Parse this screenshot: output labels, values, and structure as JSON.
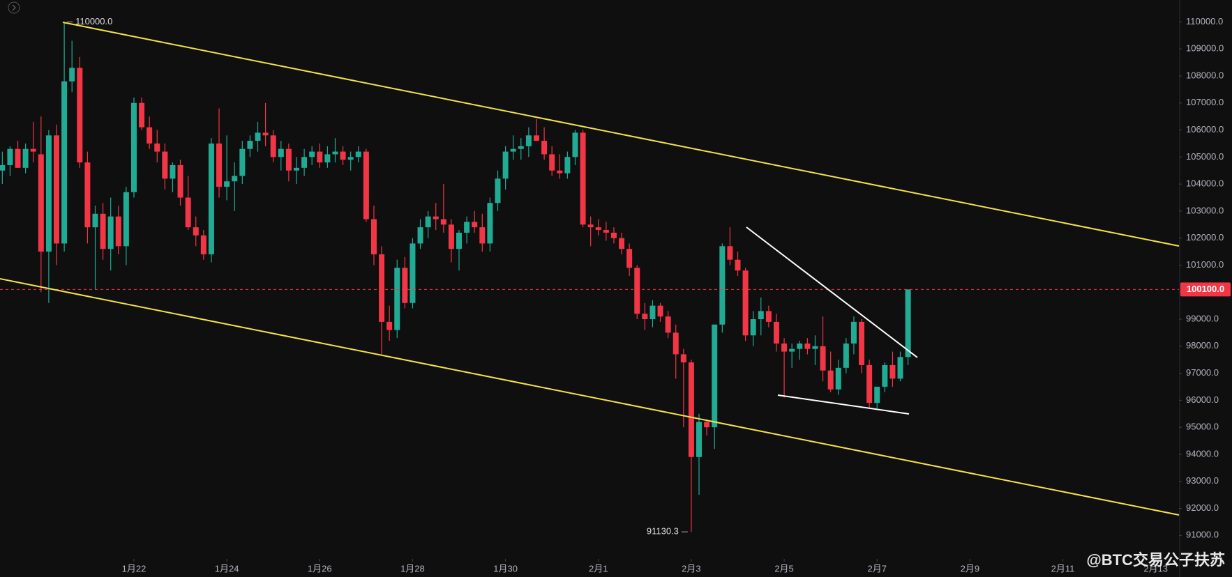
{
  "chart_data": {
    "type": "candlestick",
    "up_color": "#22ab94",
    "down_color": "#f23645",
    "grid": false,
    "xlim": [
      -0.3,
      152
    ],
    "ylim": [
      90130,
      110810
    ],
    "xticks": [
      {
        "value": 17,
        "label": "1月22"
      },
      {
        "value": 29,
        "label": "1月24"
      },
      {
        "value": 41,
        "label": "1月26"
      },
      {
        "value": 53,
        "label": "1月28"
      },
      {
        "value": 65,
        "label": "1月30"
      },
      {
        "value": 77,
        "label": "2月1"
      },
      {
        "value": 89,
        "label": "2月3"
      },
      {
        "value": 101,
        "label": "2月5"
      },
      {
        "value": 113,
        "label": "2月7"
      },
      {
        "value": 125,
        "label": "2月9"
      },
      {
        "value": 137,
        "label": "2月11"
      },
      {
        "value": 149,
        "label": "2月13"
      }
    ],
    "yticks": [
      {
        "value": 91000,
        "label": "91000.0"
      },
      {
        "value": 92000,
        "label": "92000.0"
      },
      {
        "value": 93000,
        "label": "93000.0"
      },
      {
        "value": 94000,
        "label": "94000.0"
      },
      {
        "value": 95000,
        "label": "95000.0"
      },
      {
        "value": 96000,
        "label": "96000.0"
      },
      {
        "value": 97000,
        "label": "97000.0"
      },
      {
        "value": 98000,
        "label": "98000.0"
      },
      {
        "value": 99000,
        "label": "99000.0"
      },
      {
        "value": 100000,
        "label": "100000.0"
      },
      {
        "value": 101000,
        "label": "101000.0"
      },
      {
        "value": 102000,
        "label": "102000.0"
      },
      {
        "value": 103000,
        "label": "103000.0"
      },
      {
        "value": 104000,
        "label": "104000.0"
      },
      {
        "value": 105000,
        "label": "105000.0"
      },
      {
        "value": 106000,
        "label": "106000.0"
      },
      {
        "value": 107000,
        "label": "107000.0"
      },
      {
        "value": 108000,
        "label": "108000.0"
      },
      {
        "value": 109000,
        "label": "109000.0"
      },
      {
        "value": 110000,
        "label": "110000.0"
      }
    ],
    "high_label": {
      "value": 110000,
      "label": "110000.0"
    },
    "low_label": {
      "value": 91130.3,
      "label": "91130.3"
    },
    "last_price": {
      "value": 100100,
      "label": "100100.0"
    },
    "watermark": "@BTC交易公子扶苏",
    "candles": [
      [
        104500,
        105200,
        104000,
        104700
      ],
      [
        104700,
        105400,
        104300,
        105300
      ],
      [
        105300,
        105600,
        104600,
        104600
      ],
      [
        104600,
        105500,
        104400,
        105300
      ],
      [
        105300,
        106300,
        104800,
        105200
      ],
      [
        105100,
        106500,
        100000,
        101500
      ],
      [
        101500,
        106000,
        99600,
        105800
      ],
      [
        105800,
        106200,
        101000,
        101800
      ],
      [
        101800,
        110000,
        101500,
        107800
      ],
      [
        107800,
        109300,
        107400,
        108300
      ],
      [
        108300,
        108700,
        104600,
        104800
      ],
      [
        104800,
        105200,
        101800,
        102400
      ],
      [
        102400,
        103200,
        100100,
        102900
      ],
      [
        102900,
        103300,
        101200,
        101600
      ],
      [
        101600,
        103500,
        100800,
        102800
      ],
      [
        102800,
        103200,
        101400,
        101700
      ],
      [
        101700,
        103900,
        101000,
        103700
      ],
      [
        103700,
        107200,
        103500,
        107000
      ],
      [
        107000,
        107200,
        106000,
        106100
      ],
      [
        106100,
        106500,
        105300,
        105500
      ],
      [
        105500,
        106000,
        104800,
        105200
      ],
      [
        105200,
        105500,
        103800,
        104200
      ],
      [
        104200,
        104800,
        103700,
        104700
      ],
      [
        104700,
        104900,
        103200,
        103500
      ],
      [
        103500,
        104300,
        102300,
        102400
      ],
      [
        102400,
        102800,
        101700,
        102100
      ],
      [
        102100,
        102300,
        101200,
        101400
      ],
      [
        101400,
        105700,
        101100,
        105500
      ],
      [
        105500,
        106800,
        103500,
        103900
      ],
      [
        103900,
        105800,
        103400,
        104100
      ],
      [
        104100,
        104800,
        103000,
        104300
      ],
      [
        104300,
        105600,
        104000,
        105300
      ],
      [
        105300,
        105800,
        105000,
        105600
      ],
      [
        105600,
        106300,
        105200,
        105900
      ],
      [
        105900,
        107000,
        105400,
        105800
      ],
      [
        105800,
        106000,
        104800,
        105000
      ],
      [
        105000,
        105600,
        104500,
        105300
      ],
      [
        105300,
        105500,
        104100,
        104500
      ],
      [
        104500,
        105000,
        104000,
        104600
      ],
      [
        104600,
        105300,
        104300,
        105000
      ],
      [
        105000,
        105400,
        104700,
        105200
      ],
      [
        105200,
        105500,
        104600,
        104800
      ],
      [
        104800,
        105400,
        104600,
        105100
      ],
      [
        105100,
        105700,
        104800,
        105200
      ],
      [
        105200,
        105400,
        104700,
        104900
      ],
      [
        104900,
        105200,
        104500,
        105000
      ],
      [
        105000,
        105400,
        104800,
        105200
      ],
      [
        105200,
        105300,
        102600,
        102700
      ],
      [
        102700,
        103200,
        101000,
        101400
      ],
      [
        101400,
        101700,
        97700,
        98900
      ],
      [
        98900,
        99500,
        98200,
        98600
      ],
      [
        98600,
        101200,
        98300,
        100900
      ],
      [
        100900,
        101300,
        99400,
        99600
      ],
      [
        99600,
        102000,
        99400,
        101800
      ],
      [
        101800,
        102700,
        101600,
        102400
      ],
      [
        102400,
        103000,
        102000,
        102800
      ],
      [
        102800,
        103300,
        102300,
        102700
      ],
      [
        102700,
        104000,
        102200,
        102500
      ],
      [
        102500,
        102700,
        101100,
        101600
      ],
      [
        101600,
        102300,
        100800,
        102200
      ],
      [
        102200,
        102800,
        101800,
        102600
      ],
      [
        102600,
        103000,
        102200,
        102400
      ],
      [
        102400,
        102900,
        101500,
        101800
      ],
      [
        101800,
        103500,
        101500,
        103300
      ],
      [
        103300,
        104500,
        103000,
        104200
      ],
      [
        104200,
        105400,
        103800,
        105200
      ],
      [
        105200,
        105800,
        104900,
        105300
      ],
      [
        105300,
        105700,
        104900,
        105400
      ],
      [
        105400,
        106100,
        105000,
        105800
      ],
      [
        105800,
        106400,
        105600,
        105600
      ],
      [
        105600,
        106100,
        104900,
        105100
      ],
      [
        105100,
        105400,
        104300,
        104500
      ],
      [
        104500,
        105100,
        104200,
        104400
      ],
      [
        104400,
        105200,
        104200,
        105000
      ],
      [
        105000,
        106000,
        104700,
        105900
      ],
      [
        105900,
        106000,
        102400,
        102500
      ],
      [
        102500,
        102800,
        101700,
        102400
      ],
      [
        102400,
        102700,
        102100,
        102300
      ],
      [
        102300,
        102600,
        101900,
        102200
      ],
      [
        102200,
        102400,
        101800,
        102000
      ],
      [
        102000,
        102200,
        101400,
        101600
      ],
      [
        101600,
        101800,
        100600,
        100900
      ],
      [
        100900,
        101000,
        99000,
        99200
      ],
      [
        99200,
        99600,
        98600,
        99000
      ],
      [
        99000,
        99700,
        98700,
        99500
      ],
      [
        99500,
        99600,
        98900,
        99100
      ],
      [
        99100,
        99300,
        98300,
        98500
      ],
      [
        98500,
        98800,
        96800,
        97700
      ],
      [
        97700,
        97900,
        95000,
        97400
      ],
      [
        97400,
        97500,
        91130.3,
        93900
      ],
      [
        93900,
        95500,
        92500,
        95200
      ],
      [
        95200,
        95300,
        94700,
        95000
      ],
      [
        95000,
        98800,
        94200,
        98800
      ],
      [
        98800,
        101800,
        98500,
        101700
      ],
      [
        101700,
        102400,
        101000,
        101200
      ],
      [
        101200,
        101500,
        100600,
        100800
      ],
      [
        100800,
        100900,
        98200,
        98400
      ],
      [
        98400,
        99300,
        98000,
        99000
      ],
      [
        99000,
        99800,
        98400,
        99300
      ],
      [
        99300,
        99500,
        98700,
        98900
      ],
      [
        98900,
        99200,
        97800,
        98100
      ],
      [
        98100,
        98300,
        96100,
        97800
      ],
      [
        97800,
        98100,
        97200,
        97900
      ],
      [
        97900,
        98200,
        97500,
        98100
      ],
      [
        98100,
        98300,
        97700,
        97900
      ],
      [
        97900,
        98400,
        97300,
        98000
      ],
      [
        98000,
        99100,
        96700,
        97100
      ],
      [
        97100,
        97800,
        96300,
        96400
      ],
      [
        96400,
        97500,
        96200,
        97200
      ],
      [
        97200,
        98300,
        97000,
        98100
      ],
      [
        98100,
        99100,
        97700,
        98900
      ],
      [
        98900,
        99000,
        97000,
        97300
      ],
      [
        97300,
        97500,
        95700,
        95900
      ],
      [
        95900,
        96500,
        95700,
        96500
      ],
      [
        96500,
        97400,
        96300,
        97300
      ],
      [
        97300,
        97800,
        96500,
        96800
      ],
      [
        96800,
        97800,
        96700,
        97600
      ],
      [
        97600,
        100100,
        97300,
        100100
      ]
    ]
  }
}
